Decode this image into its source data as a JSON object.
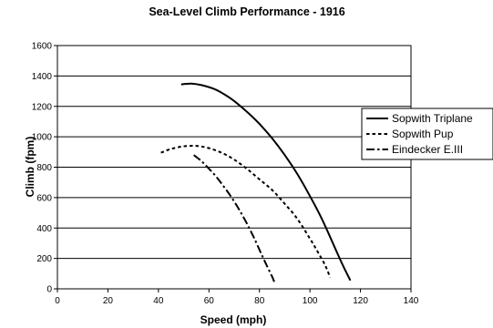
{
  "chart_data": {
    "type": "line",
    "title": "Sea-Level Climb Performance - 1916",
    "xlabel": "Speed (mph)",
    "ylabel": "Climb (fpm)",
    "xlim": [
      0,
      140
    ],
    "ylim": [
      0,
      1600
    ],
    "xticks": [
      0,
      20,
      40,
      60,
      80,
      100,
      120,
      140
    ],
    "yticks": [
      0,
      200,
      400,
      600,
      800,
      1000,
      1200,
      1400,
      1600
    ],
    "grid": "horizontal",
    "legend_position": "right",
    "series": [
      {
        "name": "Sopwith Triplane",
        "style": "solid",
        "color": "#000000",
        "x": [
          49,
          53,
          57,
          62,
          66,
          70,
          75,
          80,
          85,
          90,
          95,
          100,
          105,
          110,
          113,
          116
        ],
        "y": [
          1345,
          1350,
          1340,
          1315,
          1280,
          1235,
          1165,
          1085,
          990,
          880,
          755,
          610,
          450,
          265,
          155,
          55
        ]
      },
      {
        "name": "Sopwith Pup",
        "style": "dotted",
        "color": "#000000",
        "x": [
          41,
          45,
          50,
          55,
          60,
          65,
          70,
          75,
          80,
          85,
          90,
          95,
          100,
          103,
          106,
          108
        ],
        "y": [
          895,
          920,
          937,
          940,
          925,
          895,
          850,
          790,
          720,
          650,
          560,
          460,
          330,
          245,
          155,
          75
        ]
      },
      {
        "name": "Eindecker E.III",
        "style": "dashdot",
        "color": "#000000",
        "x": [
          54,
          57,
          60,
          63,
          66,
          69,
          72,
          75,
          78,
          81,
          83,
          85,
          86
        ],
        "y": [
          880,
          840,
          790,
          735,
          670,
          600,
          520,
          430,
          330,
          220,
          150,
          80,
          40
        ]
      }
    ]
  }
}
